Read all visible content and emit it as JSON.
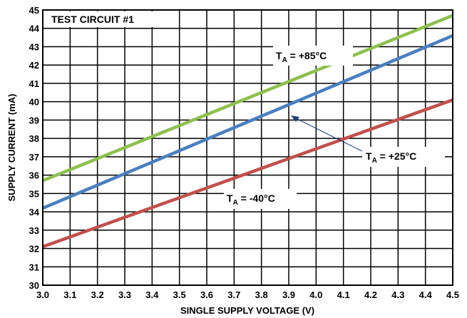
{
  "chart_data": {
    "type": "line",
    "title": "TEST CIRCUIT #1",
    "xlabel": "SINGLE SUPPLY VOLTAGE (V)",
    "ylabel": "SUPPLY CURRENT (mA)",
    "xlim": [
      3.0,
      4.5
    ],
    "ylim": [
      30,
      45
    ],
    "xticks": [
      "3.0",
      "3.1",
      "3.2",
      "3.3",
      "3.4",
      "3.5",
      "3.6",
      "3.7",
      "3.8",
      "3.9",
      "4.0",
      "4.1",
      "4.2",
      "4.3",
      "4.4",
      "4.5"
    ],
    "yticks": [
      "30",
      "31",
      "32",
      "33",
      "34",
      "35",
      "36",
      "37",
      "38",
      "39",
      "40",
      "41",
      "42",
      "43",
      "44",
      "45"
    ],
    "grid": true,
    "series": [
      {
        "name": "T_A = +85°C",
        "label_main": "T",
        "label_sub": "A",
        "label_rest": " = +85°C",
        "color": "#8fbf4f",
        "x": [
          3.0,
          4.5
        ],
        "y": [
          35.7,
          44.7
        ]
      },
      {
        "name": "T_A = +25°C",
        "label_main": "T",
        "label_sub": "A",
        "label_rest": " = +25°C",
        "color": "#4a7fbf",
        "x": [
          3.0,
          4.5
        ],
        "y": [
          34.2,
          43.6
        ]
      },
      {
        "name": "T_A = -40°C",
        "label_main": "T",
        "label_sub": "A",
        "label_rest": " = -40°C",
        "color": "#c0504d",
        "x": [
          3.0,
          4.5
        ],
        "y": [
          32.1,
          40.1
        ]
      }
    ]
  }
}
